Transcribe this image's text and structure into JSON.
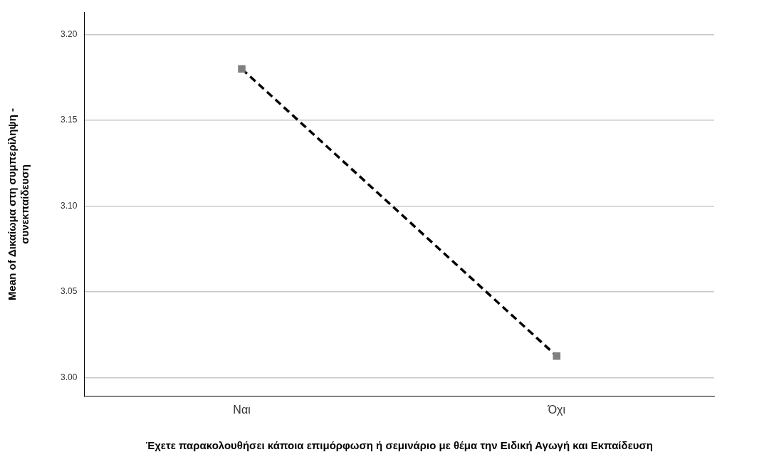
{
  "chart_data": {
    "type": "line",
    "xlabel": "Έχετε παρακολουθήσει κάποια επιμόρφωση ή σεμινάριο με θέμα την Ειδική Αγωγή και Εκπαίδευση",
    "ylabel": "Mean of Δικαίωμα στη συμπερίληψη - συνεκπαίδευση",
    "categories": [
      "Ναι",
      "Όχι"
    ],
    "series": [
      {
        "color": "#000000",
        "values": [
          3.18,
          3.0125
        ]
      }
    ],
    "ylim": [
      2.989,
      3.213
    ],
    "yticks": [
      {
        "value": 3.0,
        "label": "3.00"
      },
      {
        "value": 3.05,
        "label": "3.05"
      },
      {
        "value": 3.1,
        "label": "3.10"
      },
      {
        "value": 3.15,
        "label": "3.15"
      },
      {
        "value": 3.2,
        "label": "3.20"
      }
    ],
    "grid": "y",
    "marker": "square",
    "line_style": "dashed",
    "legend": false
  }
}
